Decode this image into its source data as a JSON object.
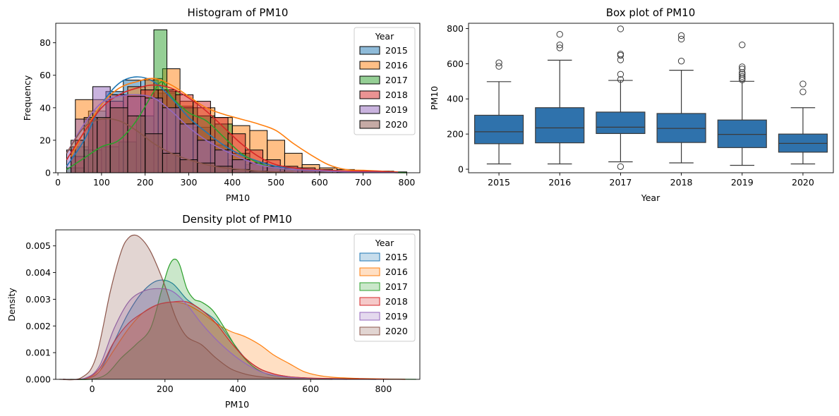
{
  "colors": {
    "2015": "#1f77b4",
    "2016": "#ff7f0e",
    "2017": "#2ca02c",
    "2018": "#d62728",
    "2019": "#9467bd",
    "2020": "#8c564b",
    "box": "#2f72ac"
  },
  "chart_data": [
    {
      "type": "histogram",
      "title": "Histogram of PM10",
      "xlabel": "PM10",
      "ylabel": "Frequency",
      "xlim": [
        -5,
        830
      ],
      "ylim": [
        0,
        92
      ],
      "xticks": [
        0,
        100,
        200,
        300,
        400,
        500,
        600,
        700,
        800
      ],
      "yticks": [
        0,
        20,
        40,
        60,
        80
      ],
      "legend": {
        "title": "Year",
        "placement": "upper right"
      },
      "series": [
        {
          "name": "2015",
          "edges": [
            30,
            70,
            110,
            150,
            190,
            230,
            270,
            310,
            350,
            390,
            430,
            470,
            510,
            550,
            590,
            630
          ],
          "counts": [
            16,
            38,
            50,
            57,
            57,
            49,
            41,
            28,
            17,
            8,
            5,
            3,
            2,
            1,
            1
          ],
          "kde_x": [
            20,
            60,
            100,
            140,
            180,
            220,
            260,
            300,
            340,
            380,
            420,
            460,
            500,
            540,
            580,
            620,
            660,
            700,
            740,
            780
          ],
          "kde_y": [
            4,
            20,
            42,
            55,
            59,
            56,
            46,
            34,
            25,
            17,
            11,
            7,
            4,
            3,
            2,
            1.5,
            1,
            0.5,
            0.3,
            0.2
          ]
        },
        {
          "name": "2016",
          "edges": [
            40,
            80,
            120,
            160,
            200,
            240,
            280,
            320,
            360,
            400,
            440,
            480,
            520,
            560,
            600,
            640,
            680,
            720,
            760
          ],
          "counts": [
            45,
            45,
            48,
            53,
            58,
            64,
            44,
            40,
            34,
            29,
            26,
            20,
            12,
            5,
            3,
            2,
            1,
            1
          ],
          "kde_x": [
            30,
            60,
            100,
            140,
            180,
            220,
            260,
            300,
            340,
            380,
            420,
            460,
            500,
            540,
            580,
            620,
            660,
            700,
            740,
            780
          ],
          "kde_y": [
            10,
            25,
            42,
            52,
            56,
            58,
            54,
            47,
            40,
            36,
            33,
            30,
            26,
            18,
            11,
            5,
            2,
            1.5,
            1,
            0.5
          ]
        },
        {
          "name": "2017",
          "edges": [
            20,
            60,
            100,
            140,
            180,
            220,
            250,
            280,
            320,
            360,
            400,
            440,
            480,
            520,
            560,
            600,
            640,
            680,
            720,
            760,
            800
          ],
          "counts": [
            3,
            14,
            16,
            19,
            35,
            88,
            50,
            40,
            35,
            30,
            12,
            6,
            4,
            2,
            1,
            1,
            1,
            0.5,
            0.5,
            0.5
          ],
          "kde_x": [
            20,
            60,
            100,
            140,
            180,
            220,
            240,
            260,
            300,
            340,
            380,
            420,
            460,
            500,
            540,
            580,
            620,
            660,
            700,
            740,
            780,
            800
          ],
          "kde_y": [
            2,
            9,
            16,
            20,
            32,
            50,
            56,
            47,
            37,
            32,
            22,
            12,
            6,
            3,
            2,
            1.5,
            1,
            0.8,
            0.5,
            0.3,
            0.1,
            0
          ]
        },
        {
          "name": "2018",
          "edges": [
            30,
            70,
            110,
            150,
            190,
            230,
            270,
            310,
            350,
            390,
            430,
            470,
            510,
            550,
            590,
            630,
            670,
            710,
            750,
            770
          ],
          "counts": [
            10,
            33,
            44,
            48,
            51,
            51,
            48,
            44,
            34,
            24,
            14,
            8,
            4,
            3,
            2,
            1,
            1,
            1,
            1
          ],
          "kde_x": [
            20,
            60,
            100,
            140,
            180,
            220,
            260,
            300,
            340,
            380,
            420,
            460,
            500,
            540,
            580,
            620,
            660,
            700,
            740,
            780
          ],
          "kde_y": [
            8,
            25,
            40,
            48,
            52,
            54,
            52,
            46,
            38,
            28,
            18,
            10,
            5,
            3,
            2,
            1.5,
            1,
            1,
            0.8,
            0.3
          ]
        },
        {
          "name": "2019",
          "edges": [
            20,
            40,
            80,
            120,
            160,
            200,
            240,
            280,
            320,
            360,
            400,
            440,
            480,
            520,
            560,
            600,
            640,
            680,
            720
          ],
          "counts": [
            14,
            33,
            53,
            48,
            47,
            46,
            40,
            30,
            20,
            14,
            8,
            6,
            4,
            3,
            2,
            1,
            0.5,
            0.5
          ],
          "kde_x": [
            20,
            60,
            100,
            140,
            180,
            220,
            260,
            300,
            340,
            380,
            420,
            460,
            500,
            540,
            580,
            620,
            660,
            700,
            740,
            780
          ],
          "kde_y": [
            12,
            30,
            43,
            47,
            48,
            46,
            38,
            28,
            20,
            14,
            9,
            5,
            3,
            2,
            1.5,
            1,
            0.5,
            0.3,
            0.2,
            0.1
          ]
        },
        {
          "name": "2020",
          "edges": [
            30,
            60,
            90,
            120,
            160,
            200,
            240,
            280,
            320,
            360,
            400,
            440,
            480,
            520
          ],
          "counts": [
            20,
            34,
            34,
            40,
            35,
            24,
            12,
            8,
            6,
            4,
            2,
            1,
            0.5
          ],
          "kde_x": [
            20,
            60,
            100,
            140,
            180,
            220,
            260,
            300,
            340,
            380,
            420,
            460,
            500,
            540
          ],
          "kde_y": [
            12,
            28,
            33,
            32,
            26,
            18,
            12,
            8,
            5,
            3,
            2,
            1,
            0.5,
            0.2
          ]
        }
      ]
    },
    {
      "type": "box",
      "title": "Box plot of PM10",
      "xlabel": "Year",
      "ylabel": "PM10",
      "categories": [
        "2015",
        "2016",
        "2017",
        "2018",
        "2019",
        "2020"
      ],
      "ylim": [
        -20,
        830
      ],
      "yticks": [
        0,
        200,
        400,
        600,
        800
      ],
      "boxes": [
        {
          "name": "2015",
          "whislo": 30,
          "q1": 145,
          "med": 213,
          "q3": 307,
          "whishi": 498,
          "fliers": [
            585,
            605
          ]
        },
        {
          "name": "2016",
          "whislo": 30,
          "q1": 150,
          "med": 235,
          "q3": 350,
          "whishi": 620,
          "fliers": [
            690,
            707,
            767
          ]
        },
        {
          "name": "2017",
          "whislo": 42,
          "q1": 203,
          "med": 239,
          "q3": 325,
          "whishi": 505,
          "fliers": [
            15,
            510,
            540,
            622,
            648,
            655,
            798
          ]
        },
        {
          "name": "2018",
          "whislo": 36,
          "q1": 152,
          "med": 232,
          "q3": 317,
          "whishi": 563,
          "fliers": [
            615,
            740,
            760
          ]
        },
        {
          "name": "2019",
          "whislo": 22,
          "q1": 123,
          "med": 198,
          "q3": 280,
          "whishi": 500,
          "fliers": [
            508,
            518,
            528,
            540,
            550,
            570,
            582,
            707
          ]
        },
        {
          "name": "2020",
          "whislo": 30,
          "q1": 97,
          "med": 147,
          "q3": 200,
          "whishi": 350,
          "fliers": [
            440,
            485
          ]
        }
      ]
    },
    {
      "type": "area",
      "title": "Density plot of PM10",
      "xlabel": "PM10",
      "ylabel": "Density",
      "xlim": [
        -100,
        900
      ],
      "ylim": [
        0,
        0.0056
      ],
      "xticks": [
        0,
        200,
        400,
        600,
        800
      ],
      "yticks": [
        0.0,
        0.001,
        0.002,
        0.003,
        0.004,
        0.005
      ],
      "ytick_labels": [
        "0.000",
        "0.001",
        "0.002",
        "0.003",
        "0.004",
        "0.005"
      ],
      "legend": {
        "title": "Year",
        "placement": "upper right"
      },
      "series": [
        {
          "name": "2015",
          "x": [
            -80,
            -20,
            20,
            60,
            100,
            140,
            180,
            220,
            260,
            300,
            340,
            380,
            420,
            460,
            500,
            540,
            580,
            620,
            660,
            700,
            740,
            780
          ],
          "y": [
            0,
            2e-05,
            0.0003,
            0.0014,
            0.0025,
            0.0033,
            0.0037,
            0.0036,
            0.003,
            0.0026,
            0.0022,
            0.0015,
            0.0008,
            0.0004,
            0.0002,
            0.0001,
            6e-05,
            3e-05,
            2e-05,
            1e-05,
            5e-06,
            0
          ]
        },
        {
          "name": "2016",
          "x": [
            -80,
            -20,
            20,
            60,
            100,
            140,
            180,
            220,
            260,
            300,
            340,
            380,
            420,
            460,
            500,
            540,
            580,
            620,
            660,
            700,
            740,
            780,
            820,
            860
          ],
          "y": [
            0,
            2e-05,
            0.0003,
            0.0011,
            0.0019,
            0.0025,
            0.0028,
            0.0029,
            0.0028,
            0.0025,
            0.0021,
            0.0018,
            0.0016,
            0.0013,
            0.0009,
            0.0006,
            0.0003,
            0.00015,
            8e-05,
            5e-05,
            3e-05,
            2e-05,
            1e-05,
            0
          ]
        },
        {
          "name": "2017",
          "x": [
            -60,
            0,
            40,
            80,
            120,
            160,
            190,
            210,
            225,
            240,
            260,
            280,
            300,
            330,
            360,
            400,
            440,
            480,
            520,
            560,
            600,
            660,
            720,
            780,
            840,
            890
          ],
          "y": [
            0,
            1e-05,
            0.0002,
            0.0008,
            0.0013,
            0.0019,
            0.0033,
            0.0042,
            0.0045,
            0.0043,
            0.0034,
            0.003,
            0.0029,
            0.0026,
            0.002,
            0.0011,
            0.0005,
            0.0002,
            0.0001,
            6e-05,
            4e-05,
            3e-05,
            2e-05,
            1e-05,
            5e-06,
            0
          ]
        },
        {
          "name": "2018",
          "x": [
            -80,
            -20,
            20,
            60,
            100,
            140,
            180,
            220,
            260,
            300,
            340,
            380,
            420,
            460,
            500,
            540,
            580,
            620,
            660,
            700,
            740,
            780,
            820,
            860
          ],
          "y": [
            0,
            3e-05,
            0.0004,
            0.0014,
            0.0021,
            0.0025,
            0.0028,
            0.0029,
            0.0029,
            0.0026,
            0.0021,
            0.0014,
            0.0008,
            0.0004,
            0.0002,
            0.0001,
            6e-05,
            4e-05,
            3e-05,
            2e-05,
            2e-05,
            1e-05,
            5e-06,
            0
          ]
        },
        {
          "name": "2019",
          "x": [
            -80,
            -20,
            20,
            60,
            100,
            140,
            180,
            220,
            260,
            300,
            340,
            380,
            420,
            460,
            500,
            540,
            580,
            620,
            660,
            700
          ],
          "y": [
            0,
            4e-05,
            0.0005,
            0.0019,
            0.0029,
            0.0033,
            0.0034,
            0.0033,
            0.0028,
            0.0021,
            0.0015,
            0.001,
            0.0006,
            0.0003,
            0.00015,
            8e-05,
            4e-05,
            2e-05,
            1e-05,
            0
          ]
        },
        {
          "name": "2020",
          "x": [
            -90,
            -30,
            10,
            50,
            80,
            100,
            120,
            140,
            160,
            180,
            200,
            230,
            260,
            300,
            340,
            380,
            420,
            460,
            500,
            540,
            580,
            620,
            660
          ],
          "y": [
            0,
            6e-05,
            0.0008,
            0.0033,
            0.0048,
            0.0053,
            0.0054,
            0.0052,
            0.0048,
            0.0042,
            0.0035,
            0.0023,
            0.0016,
            0.0013,
            0.0008,
            0.0004,
            0.0002,
            0.0001,
            5e-05,
            3e-05,
            2e-05,
            1e-05,
            0
          ]
        }
      ]
    }
  ]
}
